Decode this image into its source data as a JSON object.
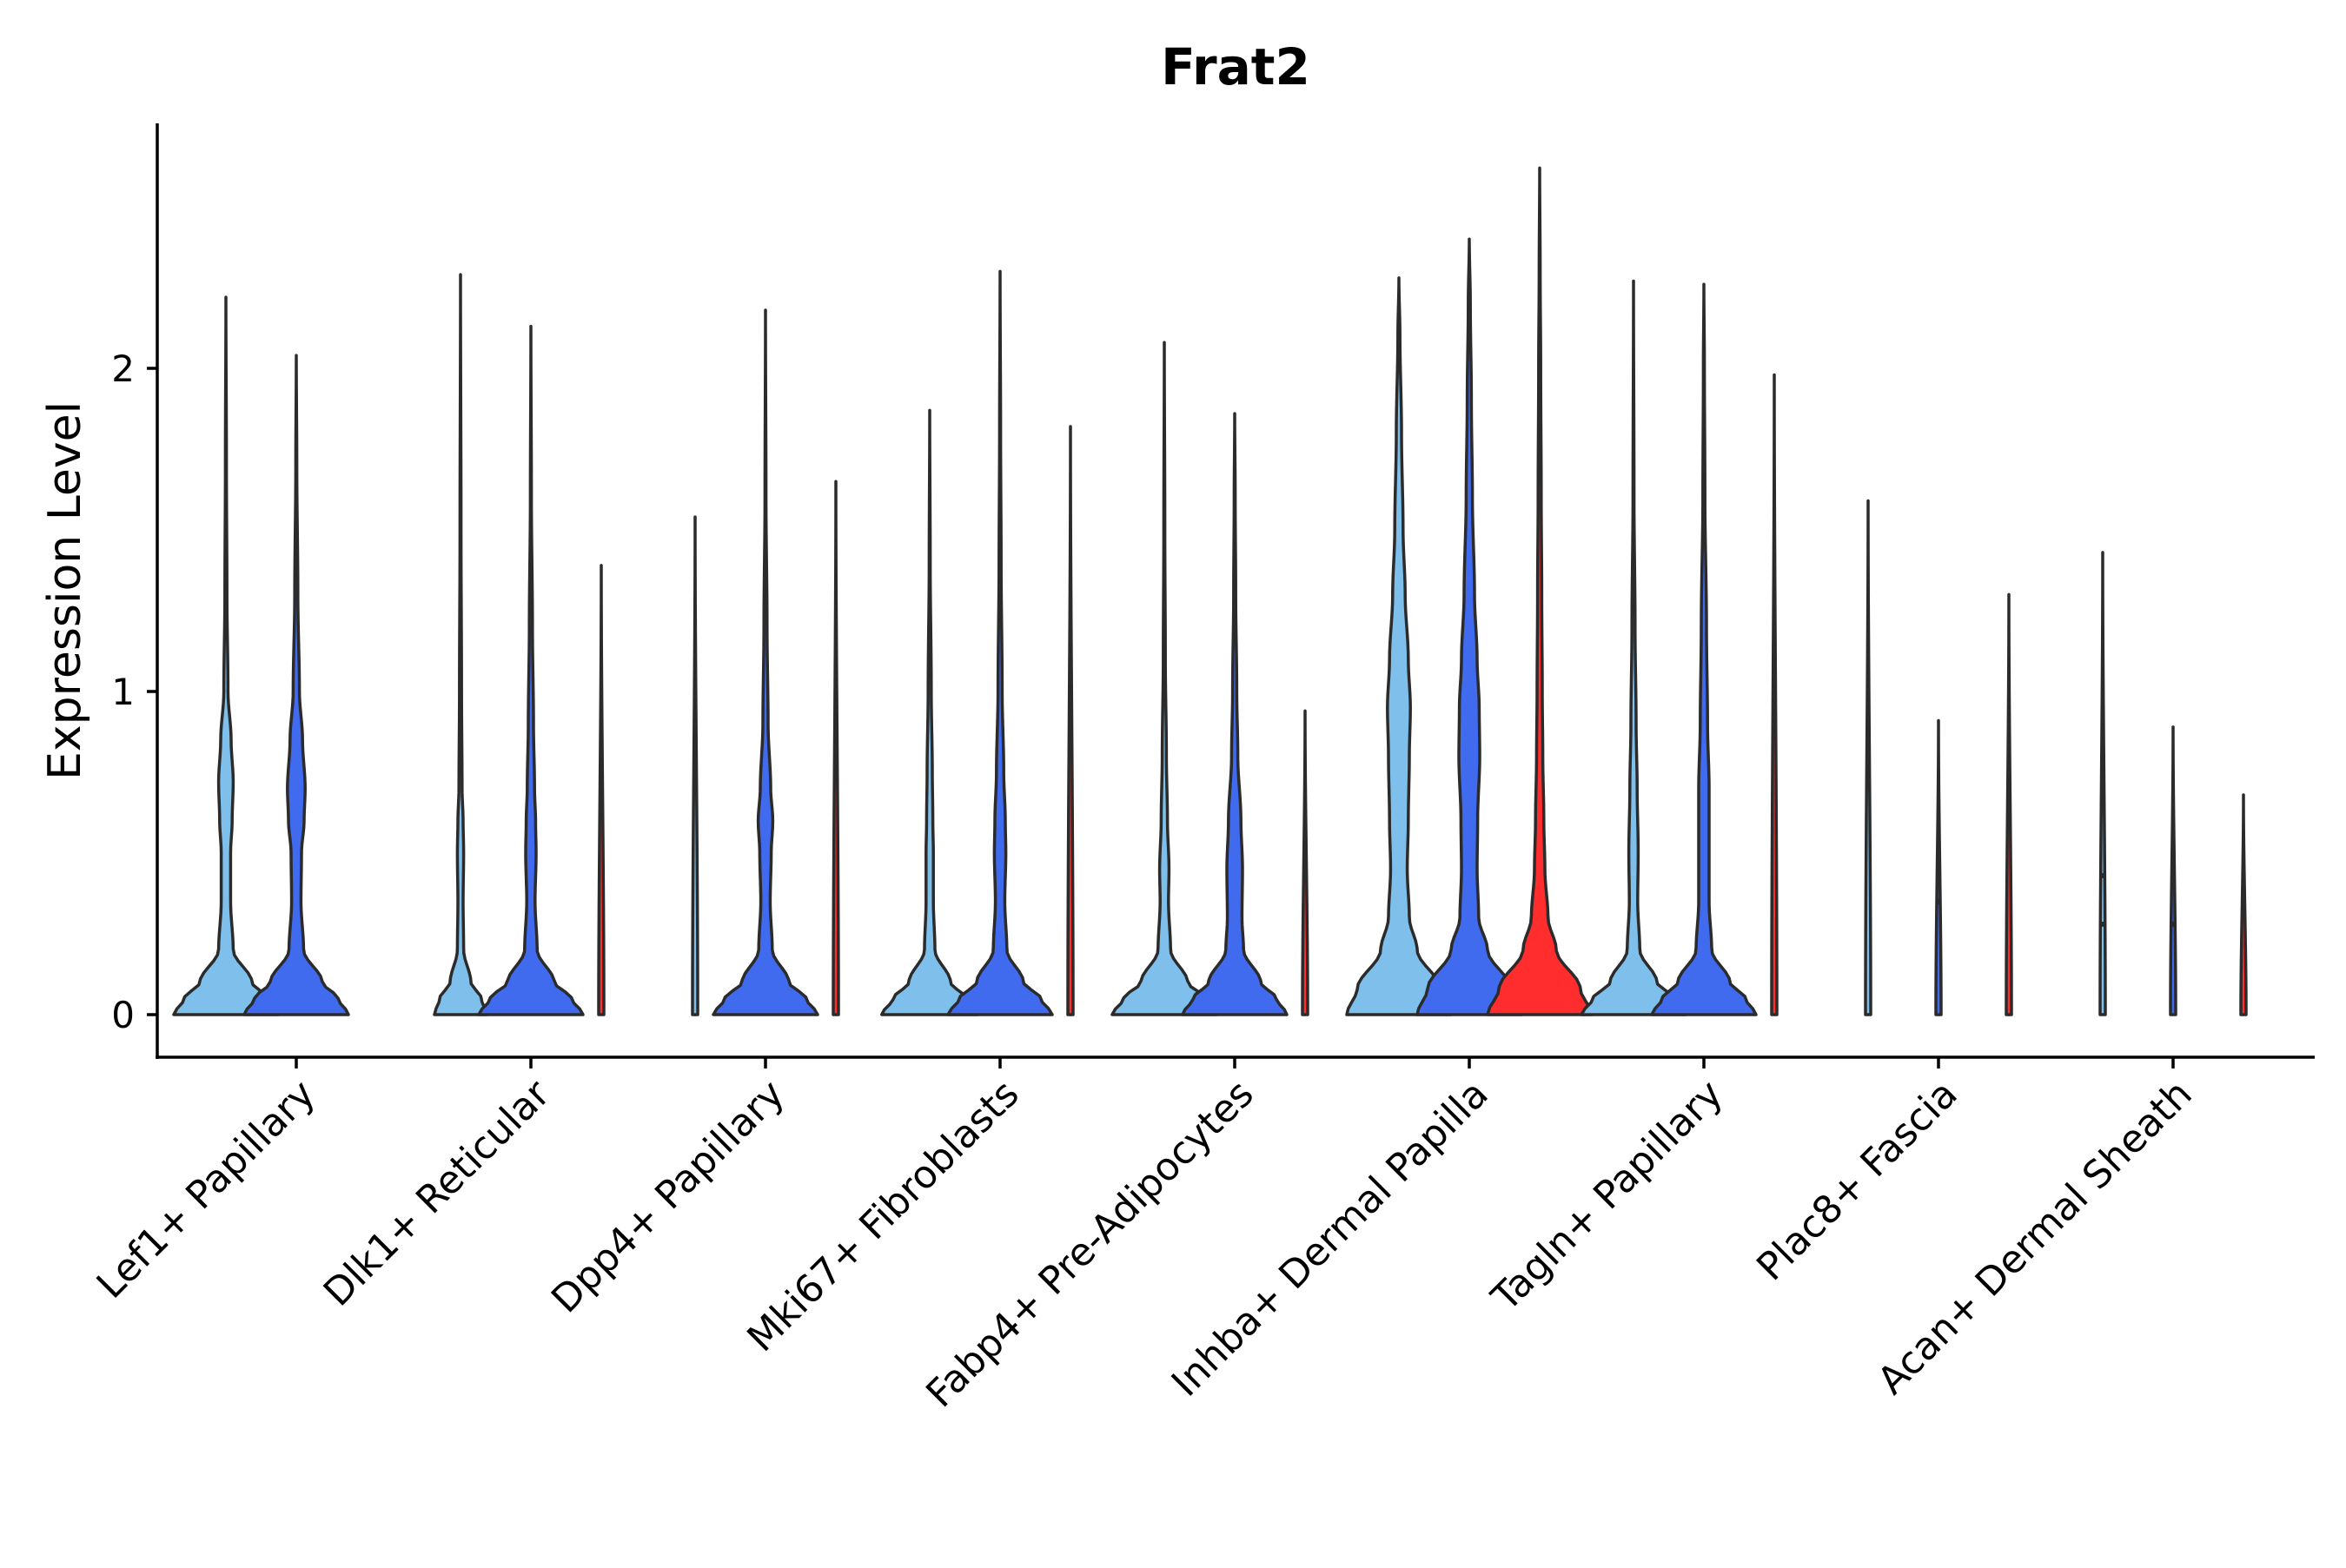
{
  "chart_data": {
    "type": "violin",
    "title": "Frat2",
    "xlabel": "",
    "ylabel": "Expression Level",
    "ylim": [
      -0.13,
      2.77
    ],
    "yticks": [
      0,
      1,
      2
    ],
    "grid": false,
    "legend": "none",
    "categories": [
      "Lef1+ Papillary",
      "Dlk1+ Reticular",
      "Dpp4+ Papillary",
      "Mki67+ Fibroblasts",
      "Fabp4+ Pre-Adipocytes",
      "Inhba+ Dermal Papilla",
      "Tagln+ Papillary",
      "Plac8+ Fascia",
      "Acan+ Dermal Sheath"
    ],
    "group_colors": [
      "#7fbfeb",
      "#416bef",
      "#ff2d2d"
    ],
    "violins": [
      {
        "category": "Lef1+ Papillary",
        "group": 0,
        "max": 2.22,
        "profile": [
          [
            0,
            1.0
          ],
          [
            0.05,
            0.8
          ],
          [
            0.1,
            0.5
          ],
          [
            0.2,
            0.14
          ],
          [
            0.35,
            0.09
          ],
          [
            0.5,
            0.09
          ],
          [
            0.6,
            0.12
          ],
          [
            0.72,
            0.14
          ],
          [
            0.85,
            0.1
          ],
          [
            1.0,
            0.04
          ],
          [
            1.3,
            0.02
          ],
          [
            1.7,
            0.01
          ]
        ]
      },
      {
        "category": "Lef1+ Papillary",
        "group": 1,
        "max": 2.04,
        "profile": [
          [
            0,
            1.0
          ],
          [
            0.05,
            0.8
          ],
          [
            0.1,
            0.5
          ],
          [
            0.2,
            0.14
          ],
          [
            0.35,
            0.09
          ],
          [
            0.5,
            0.1
          ],
          [
            0.6,
            0.15
          ],
          [
            0.7,
            0.17
          ],
          [
            0.85,
            0.12
          ],
          [
            1.0,
            0.06
          ],
          [
            1.3,
            0.03
          ],
          [
            1.7,
            0.01
          ]
        ]
      },
      {
        "category": "Dlk1+ Reticular",
        "group": 0,
        "max": 2.29,
        "profile": [
          [
            0,
            0.5
          ],
          [
            0.05,
            0.4
          ],
          [
            0.1,
            0.2
          ],
          [
            0.2,
            0.06
          ],
          [
            0.35,
            0.05
          ],
          [
            0.5,
            0.06
          ],
          [
            0.6,
            0.05
          ],
          [
            0.7,
            0.03
          ],
          [
            1.0,
            0.02
          ],
          [
            1.5,
            0.01
          ]
        ]
      },
      {
        "category": "Dlk1+ Reticular",
        "group": 1,
        "max": 2.13,
        "profile": [
          [
            0,
            1.0
          ],
          [
            0.05,
            0.78
          ],
          [
            0.1,
            0.45
          ],
          [
            0.2,
            0.12
          ],
          [
            0.35,
            0.08
          ],
          [
            0.5,
            0.1
          ],
          [
            0.6,
            0.09
          ],
          [
            0.7,
            0.07
          ],
          [
            0.9,
            0.05
          ],
          [
            1.2,
            0.03
          ],
          [
            1.6,
            0.01
          ]
        ]
      },
      {
        "category": "Dlk1+ Reticular",
        "group": 2,
        "max": 1.39,
        "profile": [
          [
            0,
            0.05
          ]
        ]
      },
      {
        "category": "Dpp4+ Papillary",
        "group": 0,
        "max": 1.54,
        "profile": [
          [
            0,
            0.05
          ]
        ]
      },
      {
        "category": "Dpp4+ Papillary",
        "group": 1,
        "max": 2.18,
        "profile": [
          [
            0,
            1.0
          ],
          [
            0.05,
            0.78
          ],
          [
            0.1,
            0.45
          ],
          [
            0.2,
            0.13
          ],
          [
            0.35,
            0.09
          ],
          [
            0.5,
            0.11
          ],
          [
            0.6,
            0.14
          ],
          [
            0.7,
            0.1
          ],
          [
            0.9,
            0.05
          ],
          [
            1.2,
            0.03
          ],
          [
            1.6,
            0.01
          ]
        ]
      },
      {
        "category": "Dpp4+ Papillary",
        "group": 2,
        "max": 1.65,
        "profile": [
          [
            0,
            0.05
          ]
        ]
      },
      {
        "category": "Mki67+ Fibroblasts",
        "group": 0,
        "max": 1.87,
        "profile": [
          [
            0,
            0.92
          ],
          [
            0.05,
            0.7
          ],
          [
            0.1,
            0.4
          ],
          [
            0.2,
            0.1
          ],
          [
            0.35,
            0.07
          ],
          [
            0.5,
            0.07
          ],
          [
            0.6,
            0.06
          ],
          [
            0.75,
            0.05
          ],
          [
            1.0,
            0.03
          ],
          [
            1.4,
            0.01
          ]
        ]
      },
      {
        "category": "Mki67+ Fibroblasts",
        "group": 1,
        "max": 2.3,
        "profile": [
          [
            0,
            1.0
          ],
          [
            0.05,
            0.78
          ],
          [
            0.1,
            0.45
          ],
          [
            0.2,
            0.13
          ],
          [
            0.35,
            0.09
          ],
          [
            0.5,
            0.11
          ],
          [
            0.6,
            0.1
          ],
          [
            0.75,
            0.07
          ],
          [
            1.0,
            0.04
          ],
          [
            1.4,
            0.02
          ],
          [
            1.8,
            0.01
          ]
        ]
      },
      {
        "category": "Mki67+ Fibroblasts",
        "group": 2,
        "max": 1.82,
        "profile": [
          [
            0,
            0.05
          ]
        ]
      },
      {
        "category": "Fabp4+ Pre-Adipocytes",
        "group": 0,
        "max": 2.08,
        "profile": [
          [
            0,
            1.0
          ],
          [
            0.05,
            0.78
          ],
          [
            0.1,
            0.45
          ],
          [
            0.2,
            0.12
          ],
          [
            0.35,
            0.08
          ],
          [
            0.45,
            0.09
          ],
          [
            0.6,
            0.06
          ],
          [
            0.8,
            0.04
          ],
          [
            1.1,
            0.02
          ],
          [
            1.5,
            0.01
          ]
        ]
      },
      {
        "category": "Fabp4+ Pre-Adipocytes",
        "group": 1,
        "max": 1.86,
        "profile": [
          [
            0,
            1.0
          ],
          [
            0.05,
            0.8
          ],
          [
            0.1,
            0.5
          ],
          [
            0.2,
            0.17
          ],
          [
            0.3,
            0.14
          ],
          [
            0.45,
            0.15
          ],
          [
            0.6,
            0.12
          ],
          [
            0.8,
            0.06
          ],
          [
            1.0,
            0.04
          ],
          [
            1.3,
            0.02
          ],
          [
            1.6,
            0.01
          ]
        ]
      },
      {
        "category": "Fabp4+ Pre-Adipocytes",
        "group": 2,
        "max": 0.94,
        "profile": [
          [
            0,
            0.05
          ]
        ]
      },
      {
        "category": "Inhba+ Dermal Papilla",
        "group": 0,
        "max": 2.28,
        "profile": [
          [
            0,
            1.0
          ],
          [
            0.08,
            0.8
          ],
          [
            0.2,
            0.35
          ],
          [
            0.3,
            0.2
          ],
          [
            0.45,
            0.16
          ],
          [
            0.6,
            0.18
          ],
          [
            0.8,
            0.2
          ],
          [
            0.95,
            0.22
          ],
          [
            1.1,
            0.18
          ],
          [
            1.3,
            0.12
          ],
          [
            1.5,
            0.08
          ],
          [
            1.8,
            0.05
          ],
          [
            2.1,
            0.02
          ]
        ]
      },
      {
        "category": "Inhba+ Dermal Papilla",
        "group": 1,
        "max": 2.4,
        "profile": [
          [
            0,
            1.0
          ],
          [
            0.08,
            0.8
          ],
          [
            0.2,
            0.35
          ],
          [
            0.3,
            0.18
          ],
          [
            0.45,
            0.15
          ],
          [
            0.6,
            0.16
          ],
          [
            0.8,
            0.2
          ],
          [
            0.95,
            0.19
          ],
          [
            1.1,
            0.15
          ],
          [
            1.3,
            0.1
          ],
          [
            1.6,
            0.06
          ],
          [
            1.9,
            0.04
          ],
          [
            2.2,
            0.02
          ]
        ]
      },
      {
        "category": "Inhba+ Dermal Papilla",
        "group": 2,
        "max": 2.62,
        "profile": [
          [
            0,
            1.0
          ],
          [
            0.08,
            0.78
          ],
          [
            0.2,
            0.32
          ],
          [
            0.3,
            0.16
          ],
          [
            0.45,
            0.1
          ],
          [
            0.6,
            0.08
          ],
          [
            0.8,
            0.06
          ],
          [
            1.0,
            0.05
          ],
          [
            1.3,
            0.04
          ],
          [
            1.6,
            0.03
          ],
          [
            2.0,
            0.02
          ],
          [
            2.3,
            0.01
          ]
        ]
      },
      {
        "category": "Tagln+ Papillary",
        "group": 0,
        "max": 2.27,
        "profile": [
          [
            0,
            1.0
          ],
          [
            0.05,
            0.78
          ],
          [
            0.1,
            0.45
          ],
          [
            0.2,
            0.12
          ],
          [
            0.35,
            0.08
          ],
          [
            0.5,
            0.09
          ],
          [
            0.7,
            0.07
          ],
          [
            0.9,
            0.05
          ],
          [
            1.2,
            0.03
          ],
          [
            1.6,
            0.01
          ]
        ]
      },
      {
        "category": "Tagln+ Papillary",
        "group": 1,
        "max": 2.26,
        "profile": [
          [
            0,
            1.0
          ],
          [
            0.05,
            0.8
          ],
          [
            0.1,
            0.5
          ],
          [
            0.2,
            0.15
          ],
          [
            0.35,
            0.1
          ],
          [
            0.5,
            0.1
          ],
          [
            0.7,
            0.1
          ],
          [
            0.9,
            0.07
          ],
          [
            1.2,
            0.05
          ],
          [
            1.6,
            0.02
          ],
          [
            2.0,
            0.01
          ]
        ]
      },
      {
        "category": "Tagln+ Papillary",
        "group": 2,
        "max": 1.98,
        "profile": [
          [
            0,
            0.05
          ]
        ]
      },
      {
        "category": "Plac8+ Fascia",
        "group": 0,
        "max": 1.59,
        "profile": [
          [
            0,
            0.05
          ]
        ]
      },
      {
        "category": "Plac8+ Fascia",
        "group": 1,
        "max": 0.91,
        "profile": [
          [
            0,
            0.05
          ]
        ]
      },
      {
        "category": "Plac8+ Fascia",
        "group": 2,
        "max": 1.3,
        "profile": [
          [
            0,
            0.05
          ]
        ]
      },
      {
        "category": "Acan+ Dermal Sheath",
        "group": 0,
        "max": 1.43,
        "profile": [
          [
            0,
            0.05
          ]
        ]
      },
      {
        "category": "Acan+ Dermal Sheath",
        "group": 1,
        "max": 0.89,
        "profile": [
          [
            0,
            0.05
          ]
        ]
      },
      {
        "category": "Acan+ Dermal Sheath",
        "group": 2,
        "max": 0.68,
        "profile": [
          [
            0,
            0.05
          ]
        ]
      }
    ],
    "points": [
      {
        "category": "Plac8+ Fascia",
        "group": 1,
        "y": 0.35
      },
      {
        "category": "Plac8+ Fascia",
        "group": 1,
        "y": 0.45
      },
      {
        "category": "Acan+ Dermal Sheath",
        "group": 0,
        "y": 0.28
      },
      {
        "category": "Acan+ Dermal Sheath",
        "group": 0,
        "y": 0.43
      },
      {
        "category": "Acan+ Dermal Sheath",
        "group": 0,
        "y": 0.64
      },
      {
        "category": "Acan+ Dermal Sheath",
        "group": 0,
        "y": 0.8
      },
      {
        "category": "Acan+ Dermal Sheath",
        "group": 1,
        "y": 0.28
      },
      {
        "category": "Acan+ Dermal Sheath",
        "group": 1,
        "y": 0.5
      }
    ]
  }
}
